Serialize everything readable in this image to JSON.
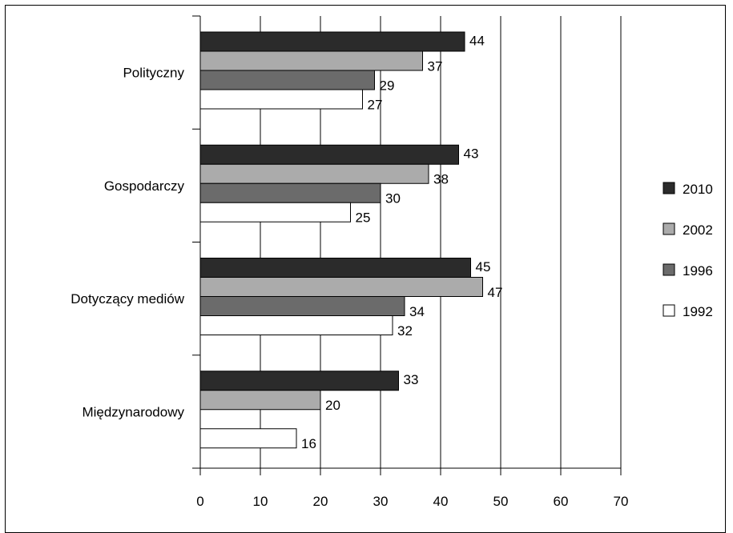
{
  "chart_data": {
    "type": "bar",
    "orientation": "horizontal",
    "categories": [
      "Polityczny",
      "Gospodarczy",
      "Dotyczący mediów",
      "Międzynarodowy"
    ],
    "series": [
      {
        "name": "2010",
        "color": "#2b2b2b",
        "values": [
          44,
          43,
          45,
          33
        ]
      },
      {
        "name": "2002",
        "color": "#ababab",
        "values": [
          37,
          38,
          47,
          20
        ]
      },
      {
        "name": "1996",
        "color": "#6b6b6b",
        "values": [
          29,
          30,
          34,
          null
        ]
      },
      {
        "name": "1992",
        "color": "#ffffff",
        "values": [
          27,
          25,
          32,
          16
        ]
      }
    ],
    "xlim": [
      0,
      70
    ],
    "xticks": [
      0,
      10,
      20,
      30,
      40,
      50,
      60,
      70
    ],
    "grid": true,
    "legend_position": "right"
  }
}
